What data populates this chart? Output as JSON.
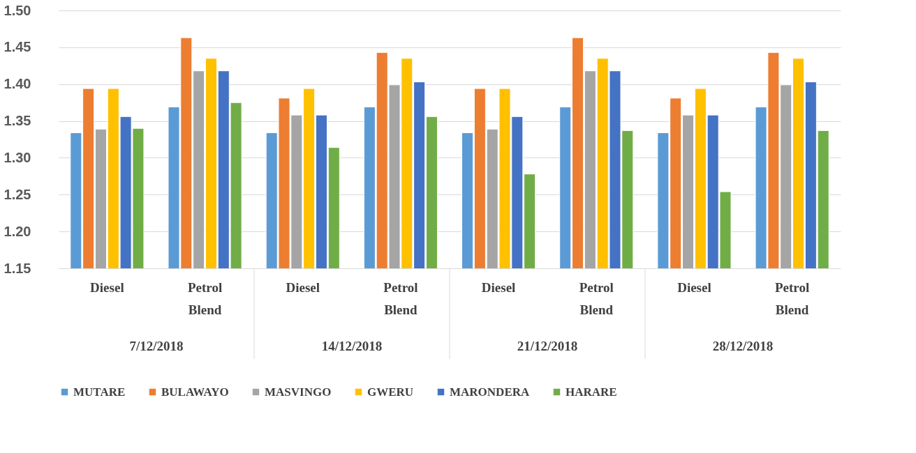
{
  "chart_data": {
    "type": "bar",
    "categories": [
      "Diesel",
      "Petrol Blend",
      "Diesel",
      "Petrol Blend",
      "Diesel",
      "Petrol Blend",
      "Diesel",
      "Petrol Blend"
    ],
    "annotations": [
      "7/12/2018",
      "14/12/2018",
      "21/12/2018",
      "28/12/2018"
    ],
    "series": [
      {
        "name": "MUTARE",
        "color": "#5b9bd5",
        "values": [
          1.334,
          1.369,
          1.334,
          1.369,
          1.334,
          1.369,
          1.334,
          1.369
        ]
      },
      {
        "name": "BULAWAYO",
        "color": "#ed7d31",
        "values": [
          1.394,
          1.463,
          1.381,
          1.443,
          1.394,
          1.463,
          1.381,
          1.443
        ]
      },
      {
        "name": "MASVINGO",
        "color": "#a5a5a5",
        "values": [
          1.339,
          1.418,
          1.358,
          1.399,
          1.339,
          1.418,
          1.358,
          1.399
        ]
      },
      {
        "name": "GWERU",
        "color": "#ffc000",
        "values": [
          1.394,
          1.435,
          1.394,
          1.435,
          1.394,
          1.435,
          1.394,
          1.435
        ]
      },
      {
        "name": "MARONDERA",
        "color": "#4472c4",
        "values": [
          1.356,
          1.418,
          1.358,
          1.403,
          1.356,
          1.418,
          1.358,
          1.403
        ]
      },
      {
        "name": "HARARE",
        "color": "#70ad47",
        "values": [
          1.34,
          1.375,
          1.314,
          1.356,
          1.278,
          1.337,
          1.254,
          1.337
        ]
      }
    ],
    "ylim": [
      1.15,
      1.5
    ],
    "yticks": [
      1.15,
      {
        "value": 1.2,
        "label": "1.20"
      },
      1.25,
      {
        "value": 1.3,
        "label": "1.30"
      },
      1.35,
      {
        "value": 1.4,
        "label": "1.40"
      },
      1.45,
      {
        "value": 1.5,
        "label": "1.50"
      }
    ],
    "grid": "y",
    "legend": "bottom"
  }
}
